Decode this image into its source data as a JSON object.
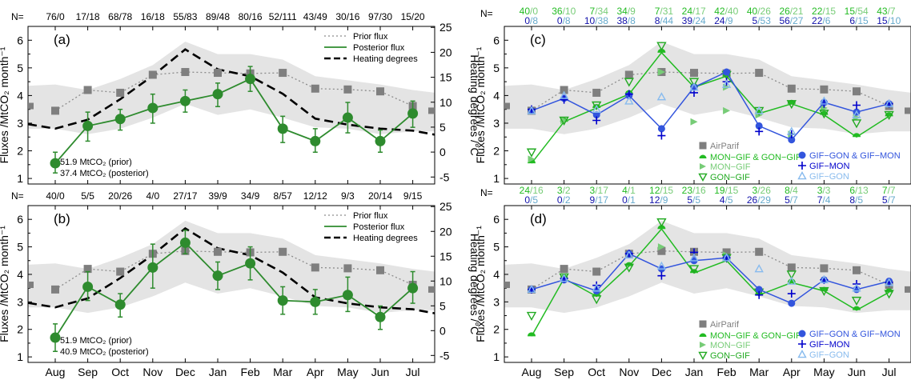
{
  "colors": {
    "band": "#e4e4e4",
    "prior": "#8c8c8c",
    "airparif": "#7f7f7f",
    "posterior": "#2e8b2e",
    "heating": "#000000",
    "mon_gif_gon_gif": "#22bb22",
    "mon_gif": "#77cc77",
    "gon_gif": "#22aa22",
    "gif_gon_gif_mon": "#3355dd",
    "gif_mon": "#0000cc",
    "gif_gon": "#88bbee",
    "n_blue": "#1111aa",
    "n_light": "#66aacc",
    "n_grey": "#888888"
  },
  "chart_data": [
    {
      "id": "a",
      "panel_label": "(a)",
      "type": "line",
      "months": [
        "Aug",
        "Sep",
        "Oct",
        "Nov",
        "Dec",
        "Jan",
        "Feb",
        "Mar",
        "Apr",
        "May",
        "Jun",
        "Jul"
      ],
      "n_prefix": "N=",
      "n_values": [
        "76/0",
        "17/18",
        "68/78",
        "16/18",
        "55/83",
        "89/48",
        "80/16",
        "52/111",
        "43/49",
        "30/16",
        "97/30",
        "15/20"
      ],
      "ylabel_left": "Fluxes /MtCO₂ month⁻¹",
      "ylabel_right": "Heating degrees /°C",
      "ylim": [
        0.8,
        6.5
      ],
      "y2lim": [
        -6.4,
        25.2
      ],
      "yticks": [
        "1",
        "2",
        "3",
        "4",
        "5",
        "6"
      ],
      "y2ticks": [
        "-5",
        "0",
        "5",
        "10",
        "15",
        "20",
        "25"
      ],
      "band": {
        "lower": [
          2.8,
          2.6,
          2.8,
          3.2,
          3.7,
          3.3,
          3.5,
          3.2,
          2.85,
          2.8,
          2.6,
          2.7
        ],
        "upper": [
          4.4,
          4.2,
          4.6,
          5.1,
          5.95,
          5.5,
          5.5,
          5.3,
          4.7,
          4.55,
          4.4,
          4.2
        ]
      },
      "series": [
        {
          "name": "Prior flux",
          "values": [
            3.45,
            4.2,
            4.1,
            4.75,
            4.85,
            4.82,
            4.8,
            4.82,
            4.25,
            4.22,
            4.15,
            3.62
          ]
        },
        {
          "name": "Posterior flux",
          "values": [
            1.55,
            2.9,
            3.15,
            3.55,
            3.8,
            4.05,
            4.6,
            2.8,
            2.35,
            3.2,
            2.35,
            3.35
          ],
          "err_low": [
            1.2,
            2.35,
            2.75,
            3.0,
            3.4,
            3.6,
            4.15,
            2.3,
            1.95,
            2.65,
            1.95,
            2.85
          ],
          "err_high": [
            1.95,
            3.4,
            3.5,
            4.05,
            4.2,
            4.45,
            5.05,
            3.25,
            2.8,
            3.75,
            2.75,
            3.8
          ]
        },
        {
          "name": "Heating degrees",
          "axis": "right",
          "values": [
            4.7,
            6.5,
            10.6,
            15.3,
            20.6,
            16.6,
            15.2,
            11.7,
            6.7,
            5.5,
            4.7,
            4.3
          ]
        }
      ],
      "annotations": [
        "51.9 MtCO₂ (prior)",
        "37.4 MtCO₂ (posterior)"
      ]
    },
    {
      "id": "b",
      "panel_label": "(b)",
      "type": "line",
      "months": [
        "Aug",
        "Sep",
        "Oct",
        "Nov",
        "Dec",
        "Jan",
        "Feb",
        "Mar",
        "Apr",
        "May",
        "Jun",
        "Jul"
      ],
      "n_prefix": "N=",
      "n_values": [
        "40/0",
        "5/5",
        "20/26",
        "4/0",
        "27/17",
        "39/9",
        "34/9",
        "8/57",
        "12/12",
        "9/3",
        "20/14",
        "9/15"
      ],
      "ylabel_left": "Fluxes /MtCO₂ month⁻¹",
      "ylabel_right": "Heating degrees /°C",
      "ylim": [
        0.8,
        6.5
      ],
      "y2lim": [
        -6.4,
        25.2
      ],
      "yticks": [
        "1",
        "2",
        "3",
        "4",
        "5",
        "6"
      ],
      "y2ticks": [
        "-5",
        "0",
        "5",
        "10",
        "15",
        "20",
        "25"
      ],
      "band": {
        "lower": [
          2.8,
          2.6,
          2.8,
          3.2,
          3.7,
          3.3,
          3.5,
          3.2,
          2.85,
          2.8,
          2.6,
          2.7
        ],
        "upper": [
          4.4,
          4.2,
          4.6,
          5.1,
          5.95,
          5.5,
          5.5,
          5.3,
          4.7,
          4.55,
          4.4,
          4.2
        ]
      },
      "series": [
        {
          "name": "Prior flux",
          "values": [
            3.45,
            4.2,
            4.1,
            4.75,
            4.85,
            4.82,
            4.8,
            4.82,
            4.25,
            4.22,
            4.15,
            3.62
          ]
        },
        {
          "name": "Posterior flux",
          "values": [
            1.7,
            3.55,
            2.9,
            4.25,
            5.15,
            3.95,
            4.4,
            3.05,
            3.0,
            3.25,
            2.45,
            3.5
          ],
          "err_low": [
            1.2,
            3.05,
            2.45,
            3.5,
            4.75,
            3.45,
            3.8,
            2.55,
            2.55,
            2.65,
            2.0,
            2.95
          ],
          "err_high": [
            2.2,
            4.1,
            3.3,
            5.1,
            5.6,
            4.45,
            5.0,
            3.55,
            3.45,
            3.9,
            2.85,
            4.1
          ]
        },
        {
          "name": "Heating degrees",
          "axis": "right",
          "values": [
            4.7,
            6.5,
            10.6,
            15.3,
            20.6,
            16.6,
            15.2,
            11.7,
            6.7,
            5.5,
            4.7,
            4.3
          ]
        }
      ],
      "annotations": [
        "51.9 MtCO₂ (prior)",
        "40.9 MtCO₂ (posterior)"
      ]
    },
    {
      "id": "c",
      "panel_label": "(c)",
      "type": "line",
      "months": [
        "Aug",
        "Sep",
        "Oct",
        "Nov",
        "Dec",
        "Jan",
        "Feb",
        "Mar",
        "Apr",
        "May",
        "Jun",
        "Jul"
      ],
      "n_prefix": "N=",
      "n_top": [
        [
          "40",
          "/0"
        ],
        [
          "36",
          "/10"
        ],
        [
          "7",
          "/34"
        ],
        [
          "34",
          "/9"
        ],
        [
          "7",
          "/31"
        ],
        [
          "24",
          "/17"
        ],
        [
          "42",
          "/40"
        ],
        [
          "40",
          "/26"
        ],
        [
          "26",
          "/21"
        ],
        [
          "22",
          "/15"
        ],
        [
          "15",
          "/54"
        ],
        [
          "43",
          "/7"
        ]
      ],
      "n_bottom": [
        [
          "0",
          "/8"
        ],
        [
          "0",
          "/8"
        ],
        [
          "10",
          "/38"
        ],
        [
          "38",
          "/8"
        ],
        [
          "8",
          "/44"
        ],
        [
          "39",
          "/24"
        ],
        [
          "24",
          "/9"
        ],
        [
          "5",
          "/53"
        ],
        [
          "56",
          "/27"
        ],
        [
          "22",
          "/6"
        ],
        [
          "6",
          "/15"
        ],
        [
          "15",
          "/10"
        ]
      ],
      "n_edge": [
        "8",
        "10"
      ],
      "ylabel_left": "Fluxes /MtCO₂ month⁻¹",
      "ylim": [
        0.8,
        6.5
      ],
      "yticks": [
        "1",
        "2",
        "3",
        "4",
        "5",
        "6"
      ],
      "band": {
        "lower": [
          2.8,
          2.6,
          2.8,
          3.2,
          3.7,
          3.3,
          3.5,
          3.2,
          2.85,
          2.8,
          2.6,
          2.7
        ],
        "upper": [
          4.4,
          4.2,
          4.6,
          5.1,
          5.95,
          5.5,
          5.5,
          5.3,
          4.7,
          4.55,
          4.4,
          4.2
        ]
      },
      "series": [
        {
          "name": "AirParif",
          "values": [
            3.45,
            4.2,
            4.1,
            4.75,
            4.85,
            4.82,
            4.8,
            4.82,
            4.25,
            4.22,
            4.15,
            3.62
          ]
        },
        {
          "name": "MON−GIF & GON−GIF",
          "values": [
            1.55,
            3.05,
            3.55,
            4.05,
            5.55,
            4.3,
            4.7,
            3.35,
            3.7,
            3.3,
            2.5,
            3.25
          ]
        },
        {
          "name": "MON−GIF",
          "values": [
            1.7,
            3.1,
            null,
            null,
            4.85,
            null,
            4.3,
            3.3,
            null,
            null,
            null,
            null
          ]
        },
        {
          "name": "GON−GIF",
          "values": [
            1.95,
            3.1,
            3.65,
            4.5,
            5.8,
            4.5,
            4.75,
            3.45,
            3.7,
            3.35,
            3.0,
            3.3
          ]
        },
        {
          "name": "GIF−GON & GIF−MON",
          "values": [
            3.45,
            3.9,
            3.3,
            4.0,
            2.8,
            4.3,
            4.85,
            2.9,
            2.4,
            3.75,
            3.4,
            3.7
          ]
        },
        {
          "name": "GIF−MON",
          "values": [
            3.5,
            3.85,
            3.1,
            4.05,
            2.55,
            4.1,
            4.5,
            2.7,
            2.6,
            3.7,
            3.65,
            3.7
          ]
        },
        {
          "name": "GIF−GON",
          "values": [
            3.45,
            4.0,
            3.5,
            3.8,
            3.95,
            4.3,
            4.4,
            3.45,
            2.7,
            3.8,
            3.3,
            3.7
          ]
        }
      ],
      "extra_points": {
        "mon_gif": [
          [
            4,
            4.85
          ],
          [
            5,
            3.05
          ],
          [
            6,
            3.45
          ],
          [
            7,
            3.3
          ],
          [
            8,
            2.6
          ],
          [
            9,
            3.55
          ],
          [
            10,
            3.2
          ]
        ]
      }
    },
    {
      "id": "d",
      "panel_label": "(d)",
      "type": "line",
      "months": [
        "Aug",
        "Sep",
        "Oct",
        "Nov",
        "Dec",
        "Jan",
        "Feb",
        "Mar",
        "Apr",
        "May",
        "Jun",
        "Jul"
      ],
      "n_prefix": "N=",
      "n_top": [
        [
          "24",
          "/16"
        ],
        [
          "3",
          "/2"
        ],
        [
          "3",
          "/17"
        ],
        [
          "4",
          "/1"
        ],
        [
          "12",
          "/15"
        ],
        [
          "23",
          "/16"
        ],
        [
          "19",
          "/15"
        ],
        [
          "3",
          "/26"
        ],
        [
          "8",
          "/4"
        ],
        [
          "3",
          "/3"
        ],
        [
          "6",
          "/13"
        ],
        [
          "7",
          "/7"
        ]
      ],
      "n_bottom": [
        [
          "0",
          "/5"
        ],
        [
          "0",
          "/2"
        ],
        [
          "9",
          "/17"
        ],
        [
          "0",
          "/1"
        ],
        [
          "12",
          "/9"
        ],
        [
          "5",
          "/5"
        ],
        [
          "4",
          "/5"
        ],
        [
          "26",
          "/29"
        ],
        [
          "5",
          "/7"
        ],
        [
          "7",
          "/4"
        ],
        [
          "8",
          "/5"
        ],
        [
          "5",
          "/7"
        ]
      ],
      "n_edge": [
        "2"
      ],
      "ylabel_left": "Fluxes /MtCO₂ month⁻¹",
      "ylim": [
        0.8,
        6.5
      ],
      "yticks": [
        "1",
        "2",
        "3",
        "4",
        "5",
        "6"
      ],
      "band": {
        "lower": [
          2.8,
          2.6,
          2.8,
          3.2,
          3.7,
          3.3,
          3.5,
          3.2,
          2.85,
          2.8,
          2.6,
          2.7
        ],
        "upper": [
          4.4,
          4.2,
          4.6,
          5.1,
          5.95,
          5.5,
          5.5,
          5.3,
          4.7,
          4.55,
          4.4,
          4.2
        ]
      },
      "series": [
        {
          "name": "AirParif",
          "values": [
            3.45,
            4.2,
            4.1,
            4.75,
            4.85,
            4.82,
            4.8,
            4.82,
            4.25,
            4.22,
            4.15,
            3.62
          ]
        },
        {
          "name": "MON−GIF & GON−GIF",
          "values": [
            1.75,
            3.85,
            3.2,
            4.3,
            5.65,
            4.05,
            4.5,
            3.25,
            3.7,
            3.4,
            2.7,
            3.35
          ]
        },
        {
          "name": "MON−GIF",
          "values": [
            null,
            3.85,
            null,
            null,
            5.0,
            null,
            4.7,
            null,
            null,
            null,
            null,
            null
          ]
        },
        {
          "name": "GON−GIF",
          "values": [
            2.5,
            3.9,
            3.1,
            4.25,
            5.9,
            4.2,
            4.6,
            3.35,
            4.0,
            3.4,
            3.05,
            3.3
          ]
        },
        {
          "name": "GIF−GON & GIF−MON",
          "values": [
            3.45,
            3.8,
            3.4,
            4.75,
            4.2,
            4.5,
            4.6,
            3.45,
            2.95,
            3.8,
            3.45,
            3.75
          ]
        },
        {
          "name": "GIF−MON",
          "values": [
            3.45,
            3.85,
            3.6,
            4.75,
            3.95,
            4.8,
            4.6,
            3.25,
            3.3,
            3.8,
            3.65,
            3.7
          ]
        },
        {
          "name": "GIF−GON",
          "values": [
            3.45,
            3.85,
            3.5,
            4.7,
            4.3,
            4.6,
            4.6,
            4.2,
            3.75,
            3.8,
            3.5,
            3.7
          ]
        }
      ]
    }
  ]
}
